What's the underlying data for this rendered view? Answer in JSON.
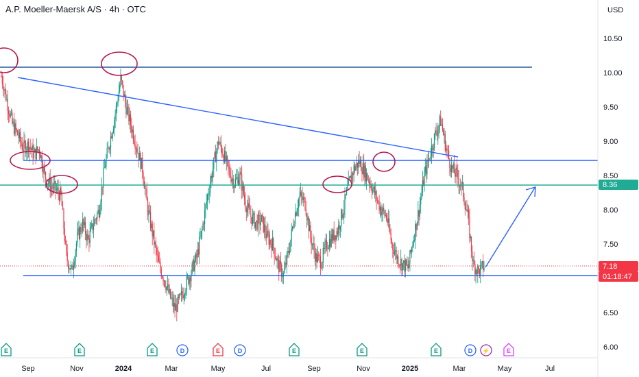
{
  "header": {
    "title": "A.P. Moeller-Maersk A/S · 4h · OTC",
    "currency": "USD"
  },
  "chart_data": {
    "type": "candlestick",
    "x_labels": [
      "Sep",
      "Nov",
      "2024",
      "Mar",
      "May",
      "Jul",
      "Sep",
      "Nov",
      "2025",
      "Mar",
      "May",
      "Jul"
    ],
    "x_labels_bold": [
      "2024",
      "2025"
    ],
    "y_ticks": [
      "10.50",
      "10.00",
      "9.50",
      "9.00",
      "8.50",
      "8.00",
      "7.50",
      "7.00",
      "6.50",
      "6.00"
    ],
    "ylim": [
      6.0,
      10.5
    ],
    "price_labels": [
      {
        "name": "horizontal-line-price",
        "value": "8.36",
        "color": "#22ab94"
      },
      {
        "name": "last-price",
        "value": "7.18",
        "color": "#f23645"
      },
      {
        "name": "countdown",
        "value": "01:18:47",
        "color": "#f23645"
      }
    ],
    "horizontal_levels": [
      {
        "price": 10.08,
        "color": "#2a5a9a"
      },
      {
        "price": 8.72,
        "color": "#2962ff"
      },
      {
        "price": 8.36,
        "color": "#22ab94"
      },
      {
        "price": 7.04,
        "color": "#2962ff"
      }
    ],
    "last_price": 7.18,
    "price_path": [
      9.95,
      9.6,
      9.25,
      9.1,
      8.9,
      8.95,
      8.8,
      8.9,
      8.5,
      8.35,
      8.3,
      8.2,
      7.3,
      7.1,
      7.6,
      7.8,
      7.55,
      7.8,
      8.0,
      8.6,
      9.0,
      9.4,
      9.9,
      9.5,
      9.2,
      8.9,
      8.6,
      8.0,
      7.6,
      7.2,
      7.0,
      6.75,
      6.55,
      6.7,
      6.9,
      7.1,
      7.3,
      7.7,
      8.2,
      8.6,
      9.0,
      8.8,
      8.55,
      8.4,
      8.5,
      8.1,
      7.9,
      7.8,
      7.85,
      7.6,
      7.5,
      7.2,
      7.05,
      7.4,
      7.9,
      8.2,
      8.1,
      7.6,
      7.3,
      7.25,
      7.5,
      7.6,
      7.7,
      8.0,
      8.35,
      8.6,
      8.7,
      8.55,
      8.4,
      8.2,
      8.0,
      7.9,
      7.5,
      7.3,
      7.2,
      7.15,
      7.6,
      8.0,
      8.5,
      8.8,
      9.1,
      9.3,
      8.9,
      8.6,
      8.5,
      8.3,
      7.9,
      7.2,
      7.1,
      7.18
    ],
    "event_markers": [
      {
        "letter": "E",
        "kind": "earnings-green"
      },
      {
        "letter": "E",
        "kind": "earnings-green"
      },
      {
        "letter": "E",
        "kind": "earnings-green"
      },
      {
        "letter": "D",
        "kind": "dividend"
      },
      {
        "letter": "E",
        "kind": "earnings-red"
      },
      {
        "letter": "D",
        "kind": "dividend"
      },
      {
        "letter": "E",
        "kind": "earnings-green"
      },
      {
        "letter": "E",
        "kind": "earnings-green"
      },
      {
        "letter": "E",
        "kind": "earnings-green"
      },
      {
        "letter": "D",
        "kind": "dividend"
      },
      {
        "letter": "⚡",
        "kind": "split"
      },
      {
        "letter": "E",
        "kind": "earnings-future"
      }
    ],
    "colors": {
      "up": "#089981",
      "down": "#f23645",
      "trendline": "#2962ff",
      "annotation": "#b5184f",
      "grid": "#f0f3fa"
    }
  }
}
